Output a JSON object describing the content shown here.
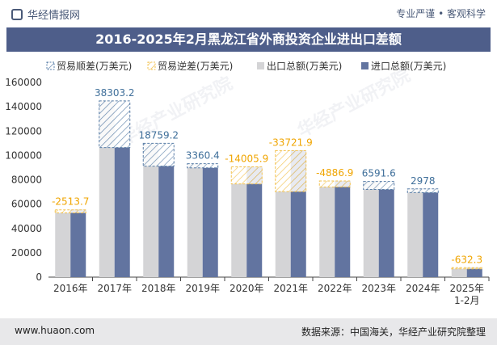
{
  "header": {
    "brand": "华经情报网",
    "slogan": "专业严谨 • 客观科学"
  },
  "footer": {
    "url": "www.huaon.com",
    "source": "数据来源：中国海关，华经产业研究院整理"
  },
  "watermark": {
    "text": "华经产业研究院",
    "url": "www.huaon.com"
  },
  "chart_data": {
    "type": "bar",
    "title": "2016-2025年2月黑龙江省外商投资企业进出口差额",
    "categories": [
      "2016年",
      "2017年",
      "2018年",
      "2019年",
      "2020年",
      "2021年",
      "2022年",
      "2023年",
      "2024年",
      "2025年\n1-2月"
    ],
    "series": [
      {
        "name": "出口总额(万美元)",
        "values": [
          52800,
          144800,
          110000,
          93200,
          76600,
          70300,
          74100,
          78600,
          72500,
          7200
        ]
      },
      {
        "name": "进口总额(万美元)",
        "values": [
          55300,
          106500,
          91200,
          89800,
          90600,
          104000,
          79000,
          72000,
          69500,
          7800
        ]
      }
    ],
    "balance": {
      "surplus_name": "贸易顺差(万美元)",
      "deficit_name": "贸易逆差(万美元)",
      "values": [
        -2513.7,
        38303.2,
        18759.2,
        3360.4,
        -14005.9,
        -33721.9,
        -4886.9,
        6591.6,
        2978,
        -632.3
      ],
      "labels": [
        "-2513.7",
        "38303.2",
        "18759.2",
        "3360.4",
        "-14005.9",
        "-33721.9",
        "-4886.9",
        "6591.6",
        "2978",
        "-632.3"
      ]
    },
    "ylim": [
      0,
      160000
    ],
    "yticks": [
      "0",
      "20000",
      "40000",
      "60000",
      "80000",
      "100000",
      "120000",
      "140000",
      "160000"
    ],
    "colors": {
      "export": "#d4d4d6",
      "import": "#6274a0",
      "surplus": "#5a7fa8",
      "deficit": "#f2c14e",
      "surplus_label": "#3f6f9a",
      "deficit_label": "#f0a500"
    },
    "legend_position": "top-right",
    "grid": false
  }
}
